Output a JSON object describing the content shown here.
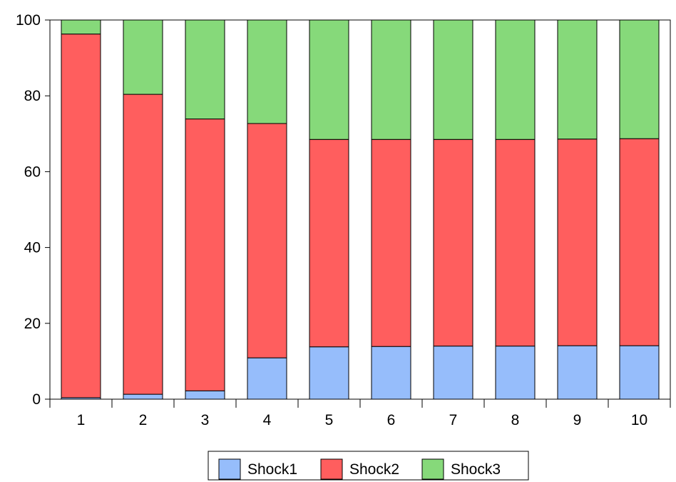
{
  "chart_data": {
    "type": "bar",
    "stacked": true,
    "categories": [
      "1",
      "2",
      "3",
      "4",
      "5",
      "6",
      "7",
      "8",
      "9",
      "10"
    ],
    "series": [
      {
        "name": "Shock1",
        "color": "#96BDFB",
        "values": [
          0.4,
          1.3,
          2.2,
          10.9,
          13.8,
          13.9,
          14.0,
          14.0,
          14.1,
          14.1
        ]
      },
      {
        "name": "Shock2",
        "color": "#FF5E5E",
        "values": [
          95.9,
          79.1,
          71.7,
          61.8,
          54.7,
          54.6,
          54.5,
          54.5,
          54.5,
          54.6
        ]
      },
      {
        "name": "Shock3",
        "color": "#86D97A",
        "values": [
          3.7,
          19.6,
          26.1,
          27.3,
          31.5,
          31.5,
          31.5,
          31.5,
          31.4,
          31.3
        ]
      }
    ],
    "y_ticks": [
      "0",
      "20",
      "40",
      "60",
      "80",
      "100"
    ],
    "ylim": [
      0,
      100
    ],
    "title": "",
    "xlabel": "",
    "ylabel": "",
    "grid": false,
    "legend_position": "bottom-center"
  }
}
